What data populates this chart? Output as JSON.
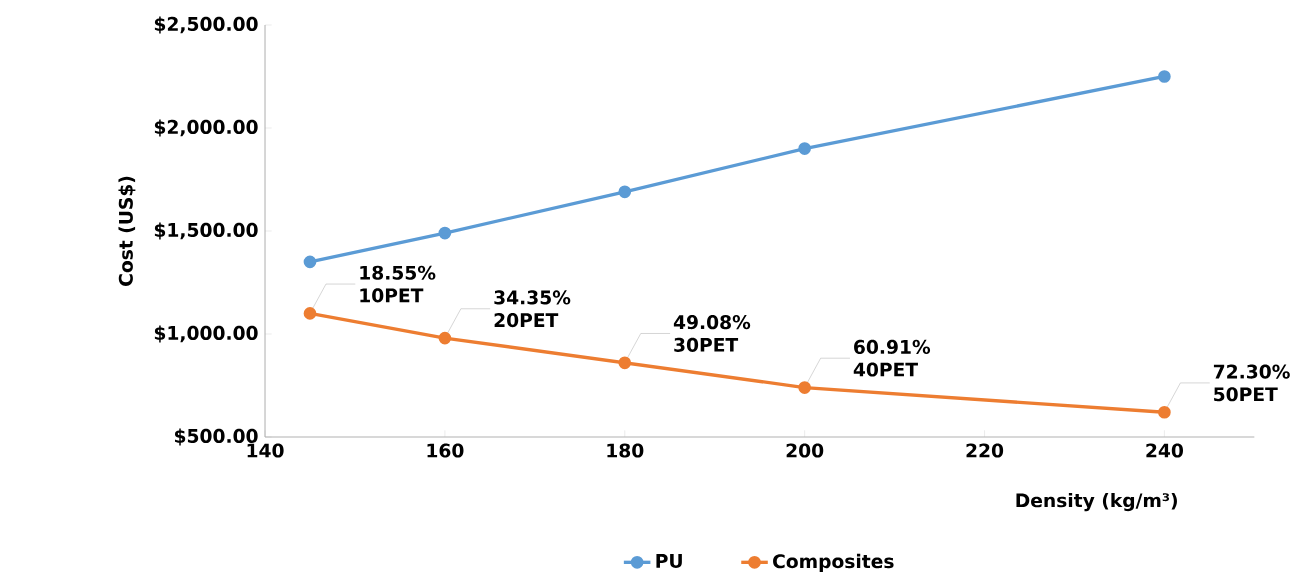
{
  "chart_data": {
    "type": "line",
    "xlabel": "Density (kg/m³)",
    "ylabel": "Cost (US$)",
    "xlim": [
      140,
      250
    ],
    "xticks": [
      140,
      160,
      180,
      200,
      220,
      240
    ],
    "ylim": [
      500,
      2500
    ],
    "yticks": [
      {
        "value": 500,
        "label": "$500.00"
      },
      {
        "value": 1000,
        "label": "$1,000.00"
      },
      {
        "value": 1500,
        "label": "$1,500.00"
      },
      {
        "value": 2000,
        "label": "$2,000.00"
      },
      {
        "value": 2500,
        "label": "$2,500.00"
      }
    ],
    "x": [
      145,
      160,
      180,
      200,
      240
    ],
    "series": [
      {
        "name": "PU",
        "color": "#5b9bd5",
        "values": [
          1350,
          1490,
          1690,
          1900,
          2250
        ]
      },
      {
        "name": "Composites",
        "color": "#ed7d31",
        "values": [
          1100,
          980,
          860,
          740,
          620
        ]
      }
    ],
    "annotations": [
      {
        "text": "18.55% 10PET",
        "x": 145,
        "y": 1100
      },
      {
        "text": "34.35% 20PET",
        "x": 160,
        "y": 980
      },
      {
        "text": "49.08% 30PET",
        "x": 180,
        "y": 860
      },
      {
        "text": "60.91% 40PET",
        "x": 200,
        "y": 740
      },
      {
        "text": "72.30% 50PET",
        "x": 240,
        "y": 620
      }
    ],
    "marker": "circle",
    "line_style": "solid",
    "grid": false,
    "legend": "bottom"
  }
}
